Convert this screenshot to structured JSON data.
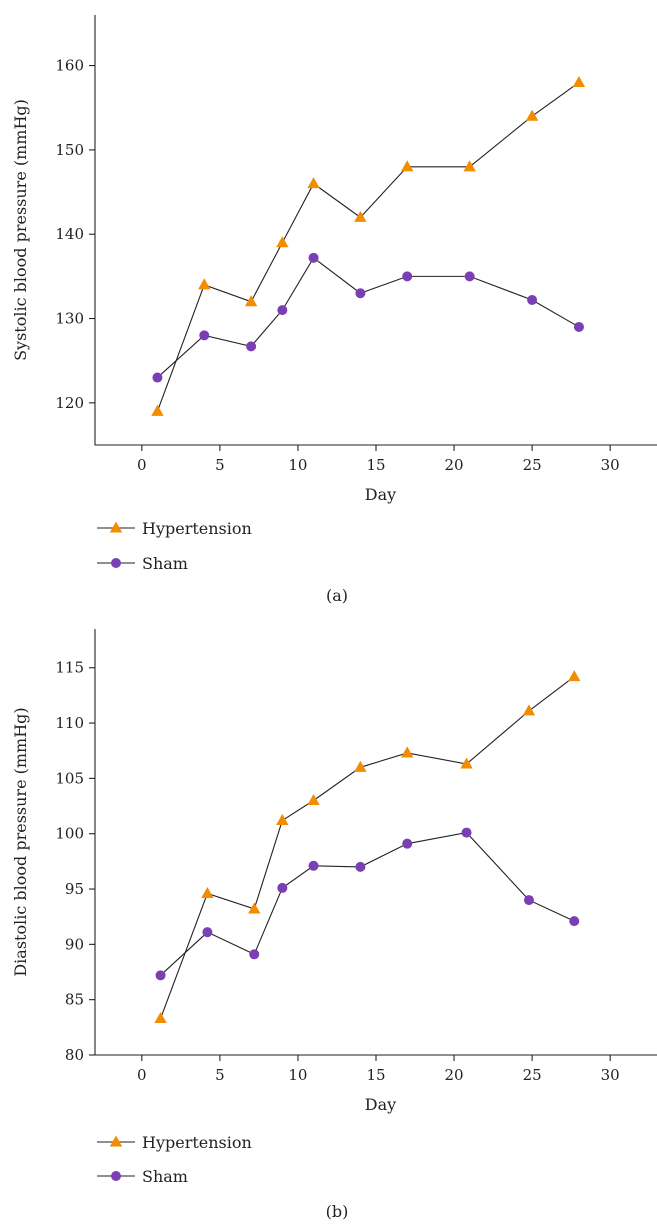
{
  "chart_data": [
    {
      "type": "line",
      "panel_label": "(a)",
      "xlabel": "Day",
      "ylabel": "Systolic blood pressure (mmHg)",
      "xlim": [
        -3,
        33
      ],
      "ylim": [
        115,
        166
      ],
      "xticks": [
        0,
        5,
        10,
        15,
        20,
        25,
        30
      ],
      "yticks": [
        120,
        130,
        140,
        150,
        160
      ],
      "legend_position": "bottom-left",
      "series": [
        {
          "name": "Hypertension",
          "marker": "triangle",
          "color": "#f28c00",
          "x": [
            1,
            4,
            7,
            9,
            11,
            14,
            17,
            21,
            25,
            28
          ],
          "y": [
            119,
            134,
            132,
            139,
            146,
            142,
            148,
            148,
            154,
            158
          ]
        },
        {
          "name": "Sham",
          "marker": "circle",
          "color": "#7b3fb5",
          "x": [
            1,
            4,
            7,
            9,
            11,
            14,
            17,
            21,
            25,
            28
          ],
          "y": [
            123,
            128,
            126.7,
            131,
            137.2,
            133,
            135,
            135,
            132.2,
            129
          ]
        }
      ]
    },
    {
      "type": "line",
      "panel_label": "(b)",
      "xlabel": "Day",
      "ylabel": "Diastolic blood pressure (mmHg)",
      "xlim": [
        -3,
        33
      ],
      "ylim": [
        80,
        118.5
      ],
      "xticks": [
        0,
        5,
        10,
        15,
        20,
        25,
        30
      ],
      "yticks": [
        80,
        85,
        90,
        95,
        100,
        105,
        110,
        115
      ],
      "legend_position": "bottom-left",
      "series": [
        {
          "name": "Hypertension",
          "marker": "triangle",
          "color": "#f28c00",
          "x": [
            1.2,
            4.2,
            7.2,
            9,
            11,
            14,
            17,
            20.8,
            24.8,
            27.7
          ],
          "y": [
            83.3,
            94.6,
            93.2,
            101.2,
            103,
            106,
            107.3,
            106.3,
            111.1,
            114.2
          ]
        },
        {
          "name": "Sham",
          "marker": "circle",
          "color": "#7b3fb5",
          "x": [
            1.2,
            4.2,
            7.2,
            9,
            11,
            14,
            17,
            20.8,
            24.8,
            27.7
          ],
          "y": [
            87.2,
            91.1,
            89.1,
            95.1,
            97.1,
            97,
            99.1,
            100.1,
            94,
            92.1
          ]
        }
      ]
    }
  ]
}
